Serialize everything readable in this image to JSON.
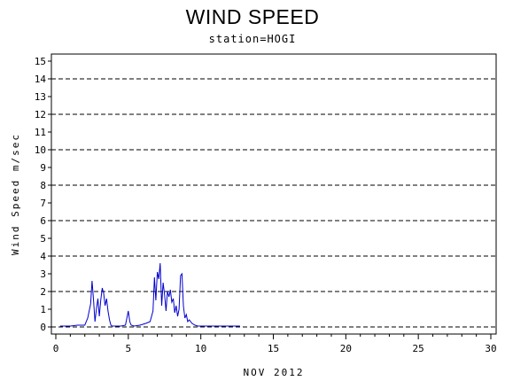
{
  "chart_data": {
    "type": "line",
    "title": "WIND SPEED",
    "subtitle": "station=HOGI",
    "xlabel": "NOV 2012",
    "ylabel": "Wind Speed m/sec",
    "xlim": [
      0,
      30
    ],
    "ylim": [
      0,
      15
    ],
    "x_ticks": [
      0,
      5,
      10,
      15,
      20,
      25,
      30
    ],
    "x_minor_step": 1,
    "y_ticks": [
      0,
      1,
      2,
      3,
      4,
      5,
      6,
      7,
      8,
      9,
      10,
      11,
      12,
      13,
      14,
      15
    ],
    "y_gridlines": [
      0,
      2,
      4,
      6,
      8,
      10,
      12,
      14
    ],
    "grid_style": "dashed",
    "line_color": "#0000cc",
    "series": [
      {
        "x": [
          0.3,
          1.0,
          1.5,
          2.0,
          2.2,
          2.4,
          2.5,
          2.6,
          2.7,
          2.8,
          2.9,
          3.0,
          3.1,
          3.2,
          3.3,
          3.4,
          3.5,
          3.6,
          3.7,
          3.8,
          3.9,
          4.0,
          4.2,
          4.5,
          4.8,
          4.9,
          5.0,
          5.1,
          5.2,
          5.4,
          5.8,
          6.2,
          6.5,
          6.7,
          6.8,
          6.9,
          7.0,
          7.1,
          7.2,
          7.3,
          7.4,
          7.5,
          7.6,
          7.7,
          7.8,
          7.9,
          8.0,
          8.1,
          8.2,
          8.3,
          8.4,
          8.5,
          8.6,
          8.7,
          8.8,
          8.9,
          9.0,
          9.1,
          9.2,
          9.4,
          9.6,
          9.8,
          10.0,
          11.0,
          12.0,
          12.7
        ],
        "y": [
          0.05,
          0.05,
          0.1,
          0.1,
          0.5,
          1.3,
          2.6,
          1.5,
          0.3,
          1.0,
          1.6,
          0.6,
          1.5,
          2.2,
          1.9,
          1.2,
          1.6,
          0.9,
          0.4,
          0.1,
          0.05,
          0.05,
          0.05,
          0.05,
          0.1,
          0.5,
          0.9,
          0.3,
          0.1,
          0.05,
          0.1,
          0.2,
          0.3,
          0.9,
          2.8,
          1.5,
          3.1,
          2.7,
          3.6,
          1.2,
          2.5,
          1.8,
          0.9,
          2.0,
          1.7,
          2.1,
          1.4,
          1.6,
          0.8,
          1.2,
          0.6,
          1.0,
          2.9,
          3.0,
          1.2,
          0.5,
          0.7,
          0.3,
          0.4,
          0.2,
          0.1,
          0.05,
          0.05,
          0.05,
          0.05,
          0.05
        ]
      }
    ]
  }
}
